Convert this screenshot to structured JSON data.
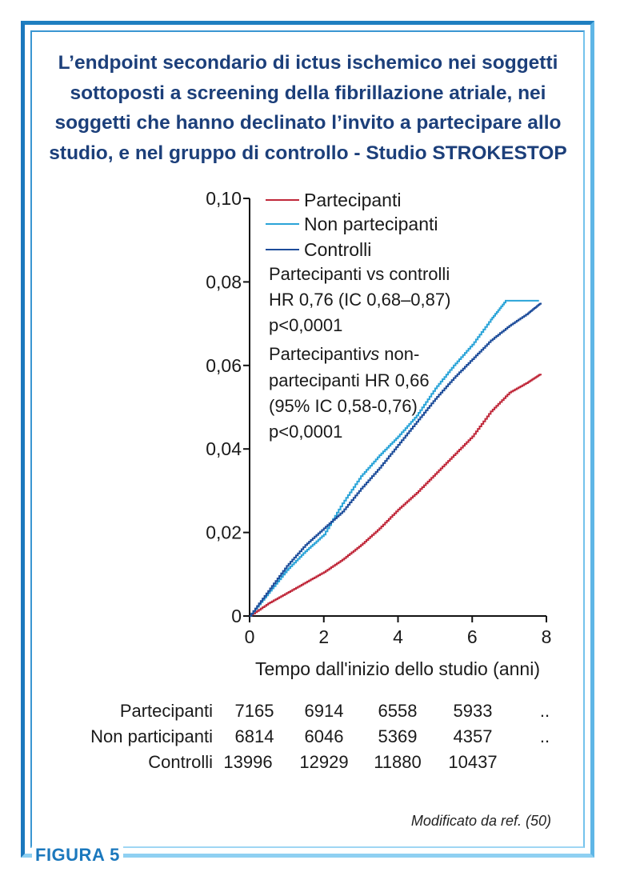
{
  "title": "L’endpoint secondario di ictus ischemico nei soggetti sottoposti a screening della fibrillazione atriale, nei soggetti che hanno declinato l’invito a partecipare allo studio, e nel gruppo di controllo - Studio STROKESTOP",
  "figure_label": "FIGURA 5",
  "credit": "Modificato da ref. (50)",
  "colors": {
    "partecipanti": "#c0283a",
    "non_partecipanti": "#2aa4d8",
    "controlli": "#1d4c9a",
    "frame": "#1f7fc0",
    "title": "#1c3f7a"
  },
  "annotation": {
    "line1": "Partecipanti vs controlli",
    "line2": "HR 0,76 (IC 0,68–0,87)",
    "line3": "p<0,0001",
    "line4a": "Partecipanti",
    "line4b": "vs",
    "line4c": " non-",
    "line5": "partecipanti HR 0,66",
    "line6": "(95% IC 0,58-0,76)",
    "line7": "p<0,0001"
  },
  "risk_table": {
    "rows": [
      {
        "label": "Partecipanti",
        "values": [
          "7165",
          "6914",
          "6558",
          "5933",
          ".."
        ]
      },
      {
        "label": "Non participanti",
        "values": [
          "6814",
          "6046",
          "5369",
          "4357",
          ".."
        ]
      },
      {
        "label": "Controlli",
        "values": [
          "13996",
          "12929",
          "11880",
          "10437",
          ""
        ]
      }
    ]
  },
  "chart_data": {
    "type": "line",
    "title": "",
    "xlabel": "Tempo dall'inizio dello studio (anni)",
    "ylabel": "",
    "xlim": [
      0,
      8
    ],
    "ylim": [
      0,
      0.1
    ],
    "x_ticks": [
      0,
      2,
      4,
      6,
      8
    ],
    "x_tick_labels": [
      "0",
      "2",
      "4",
      "6",
      "8"
    ],
    "y_ticks": [
      0,
      0.02,
      0.04,
      0.06,
      0.08,
      0.1
    ],
    "y_tick_labels": [
      "0",
      "0,02",
      "0,04",
      "0,06",
      "0,08",
      "0,10"
    ],
    "legend_position": "top-left",
    "grid": false,
    "series": [
      {
        "name": "Partecipanti",
        "color": "#c0283a",
        "points": [
          [
            0,
            0
          ],
          [
            0.5,
            0.003
          ],
          [
            1,
            0.0055
          ],
          [
            1.5,
            0.008
          ],
          [
            2,
            0.0105
          ],
          [
            2.5,
            0.0135
          ],
          [
            3,
            0.017
          ],
          [
            3.5,
            0.021
          ],
          [
            4,
            0.0255
          ],
          [
            4.5,
            0.0295
          ],
          [
            5,
            0.034
          ],
          [
            5.5,
            0.0385
          ],
          [
            6,
            0.043
          ],
          [
            6.5,
            0.049
          ],
          [
            7,
            0.0535
          ],
          [
            7.5,
            0.056
          ],
          [
            7.85,
            0.058
          ]
        ]
      },
      {
        "name": "Non partecipanti",
        "color": "#2aa4d8",
        "points": [
          [
            0,
            0
          ],
          [
            0.5,
            0.0055
          ],
          [
            1,
            0.011
          ],
          [
            1.5,
            0.0155
          ],
          [
            2,
            0.0195
          ],
          [
            2.5,
            0.027
          ],
          [
            3,
            0.0335
          ],
          [
            3.5,
            0.0385
          ],
          [
            4,
            0.043
          ],
          [
            4.5,
            0.048
          ],
          [
            5,
            0.0545
          ],
          [
            5.5,
            0.06
          ],
          [
            6,
            0.065
          ],
          [
            6.5,
            0.071
          ],
          [
            6.9,
            0.0755
          ],
          [
            7.8,
            0.0755
          ]
        ]
      },
      {
        "name": "Controlli",
        "color": "#1d4c9a",
        "points": [
          [
            0,
            0
          ],
          [
            0.5,
            0.006
          ],
          [
            1,
            0.012
          ],
          [
            1.5,
            0.017
          ],
          [
            2,
            0.021
          ],
          [
            2.5,
            0.025
          ],
          [
            3,
            0.0305
          ],
          [
            3.5,
            0.0355
          ],
          [
            4,
            0.041
          ],
          [
            4.5,
            0.0465
          ],
          [
            5,
            0.052
          ],
          [
            5.5,
            0.057
          ],
          [
            6,
            0.0615
          ],
          [
            6.5,
            0.066
          ],
          [
            7,
            0.0695
          ],
          [
            7.5,
            0.0725
          ],
          [
            7.85,
            0.075
          ]
        ]
      }
    ]
  }
}
